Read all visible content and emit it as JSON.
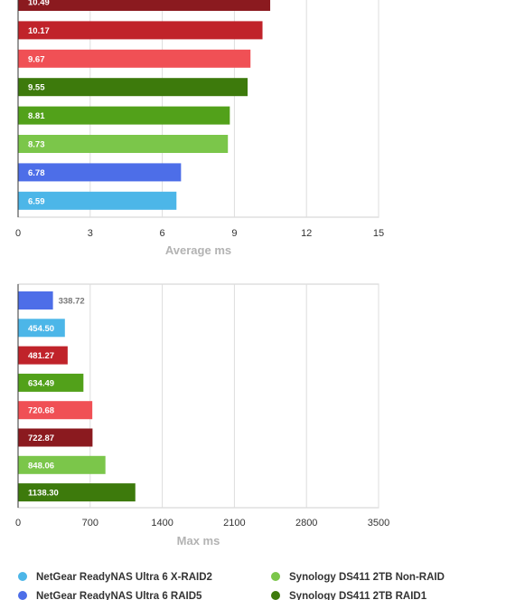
{
  "chart_data": [
    {
      "type": "bar",
      "orientation": "horizontal",
      "xlabel": "Average ms",
      "xlim": [
        0,
        15
      ],
      "xticks": [
        "0",
        "3",
        "6",
        "9",
        "12",
        "15"
      ],
      "xtick_values": [
        0,
        3,
        6,
        9,
        12,
        15
      ],
      "bars": [
        {
          "label": "10.49",
          "value": 10.49,
          "color": "#8b1a1f"
        },
        {
          "label": "10.17",
          "value": 10.17,
          "color": "#c0232a"
        },
        {
          "label": "9.67",
          "value": 9.67,
          "color": "#f05055"
        },
        {
          "label": "9.55",
          "value": 9.55,
          "color": "#3d7a0c"
        },
        {
          "label": "8.81",
          "value": 8.81,
          "color": "#52a11a"
        },
        {
          "label": "8.73",
          "value": 8.73,
          "color": "#7bc64a"
        },
        {
          "label": "6.78",
          "value": 6.78,
          "color": "#4d6ee8"
        },
        {
          "label": "6.59",
          "value": 6.59,
          "color": "#4cb6e8"
        }
      ]
    },
    {
      "type": "bar",
      "orientation": "horizontal",
      "xlabel": "Max ms",
      "xlim": [
        0,
        3500
      ],
      "xticks": [
        "0",
        "700",
        "1400",
        "2100",
        "2800",
        "3500"
      ],
      "xtick_values": [
        0,
        700,
        1400,
        2100,
        2800,
        3500
      ],
      "bars": [
        {
          "label": "338.72",
          "value": 338.72,
          "color": "#4d6ee8",
          "label_outside": true
        },
        {
          "label": "454.50",
          "value": 454.5,
          "color": "#4cb6e8"
        },
        {
          "label": "481.27",
          "value": 481.27,
          "color": "#c0232a"
        },
        {
          "label": "634.49",
          "value": 634.49,
          "color": "#52a11a"
        },
        {
          "label": "720.68",
          "value": 720.68,
          "color": "#f05055"
        },
        {
          "label": "722.87",
          "value": 722.87,
          "color": "#8b1a1f"
        },
        {
          "label": "848.06",
          "value": 848.06,
          "color": "#7bc64a"
        },
        {
          "label": "1138.30",
          "value": 1138.3,
          "color": "#3d7a0c"
        }
      ]
    }
  ],
  "legend": [
    {
      "label": "NetGear ReadyNAS Ultra 6 X-RAID2",
      "color": "#4cb6e8"
    },
    {
      "label": "Synology DS411 2TB Non-RAID",
      "color": "#7bc64a"
    },
    {
      "label": "NetGear ReadyNAS Ultra 6 RAID5",
      "color": "#4d6ee8"
    },
    {
      "label": "Synology DS411 2TB RAID1",
      "color": "#3d7a0c"
    }
  ]
}
